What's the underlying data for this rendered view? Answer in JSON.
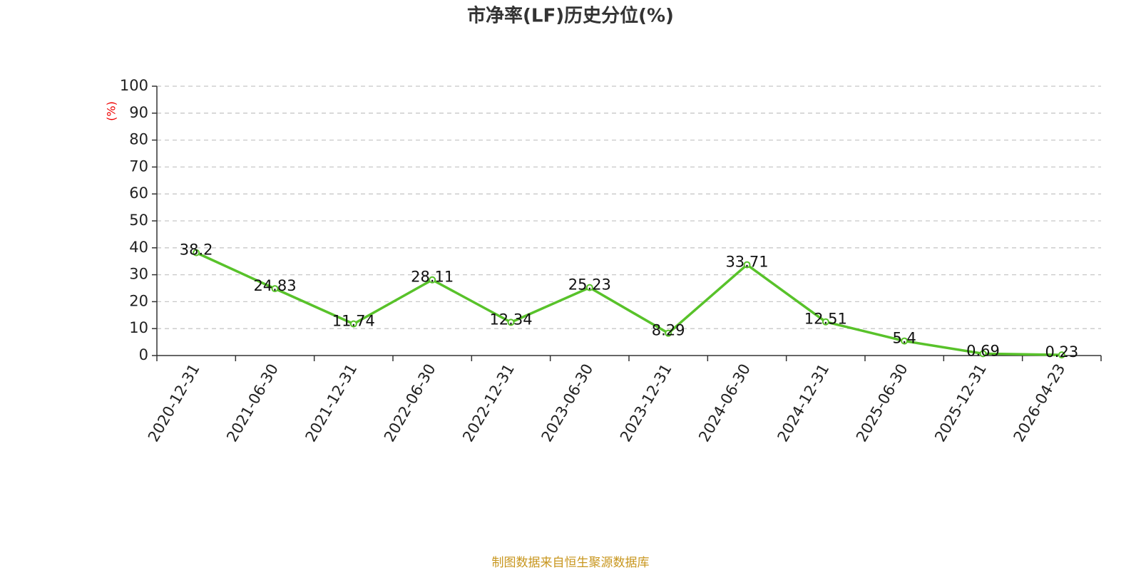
{
  "chart_data": {
    "type": "line",
    "title": "市净率(LF)历史分位(%)",
    "y_label": "(%)",
    "source": "制图数据来自恒生聚源数据库",
    "categories": [
      "2020-12-31",
      "2021-06-30",
      "2021-12-31",
      "2022-06-30",
      "2022-12-31",
      "2023-06-30",
      "2023-12-31",
      "2024-06-30",
      "2024-12-31",
      "2025-06-30",
      "2025-12-31",
      "2026-04-23"
    ],
    "values": [
      38.2,
      24.83,
      11.74,
      28.11,
      12.34,
      25.23,
      8.29,
      33.71,
      12.51,
      5.4,
      0.69,
      0.23
    ],
    "color": "#58c22a",
    "ylim": [
      0,
      100
    ],
    "yticks": [
      0,
      10,
      20,
      30,
      40,
      50,
      60,
      70,
      80,
      90,
      100
    ],
    "grid": true
  }
}
